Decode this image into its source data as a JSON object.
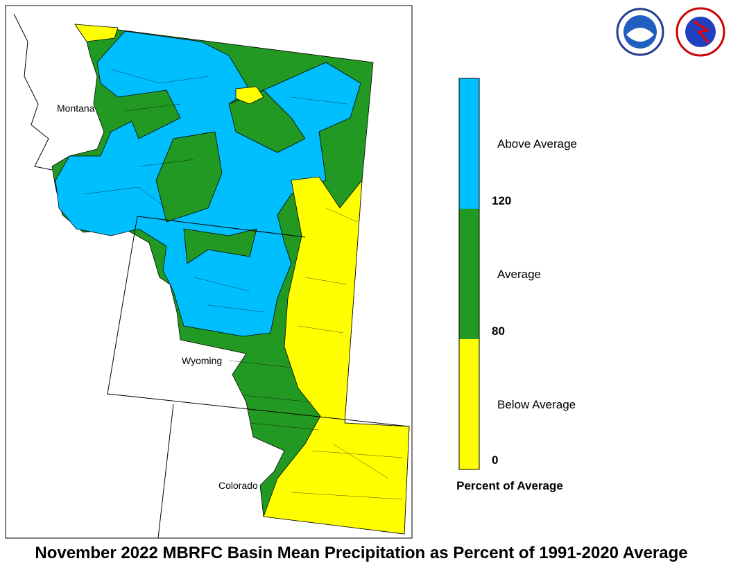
{
  "title": "November 2022 MBRFC Basin Mean Precipitation as Percent of 1991-2020 Average",
  "states": [
    "Montana",
    "Wyoming",
    "Colorado"
  ],
  "legend": {
    "title": "Percent of Average",
    "classes": [
      {
        "label": "Above Average",
        "color": "#00bfff"
      },
      {
        "label": "Average",
        "color": "#229922"
      },
      {
        "label": "Below Average",
        "color": "#ffff00"
      }
    ],
    "ticks": [
      "120",
      "80",
      "0"
    ]
  }
}
